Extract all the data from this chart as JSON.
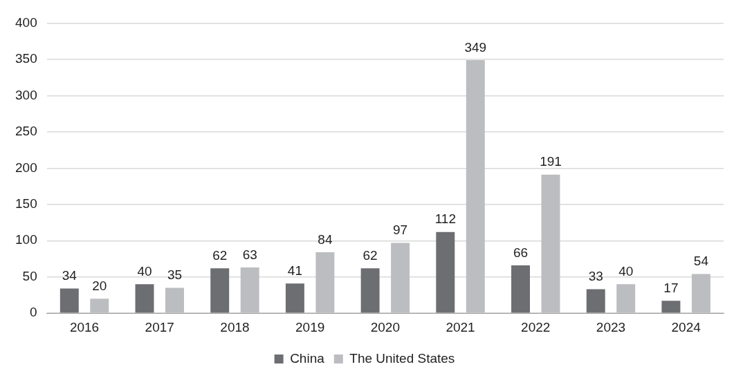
{
  "chart_data": {
    "type": "bar",
    "categories": [
      "2016",
      "2017",
      "2018",
      "2019",
      "2020",
      "2021",
      "2022",
      "2023",
      "2024"
    ],
    "series": [
      {
        "name": "China",
        "color": "#6d6e71",
        "values": [
          34,
          40,
          62,
          41,
          62,
          112,
          66,
          33,
          17
        ]
      },
      {
        "name": "The United States",
        "color": "#bcbdc0",
        "values": [
          20,
          35,
          63,
          84,
          97,
          349,
          191,
          40,
          54
        ]
      }
    ],
    "ylim": [
      0,
      400
    ],
    "yticks": [
      0,
      50,
      100,
      150,
      200,
      250,
      300,
      350,
      400
    ],
    "grid": "y",
    "legend": "bottom",
    "data_labels": true
  }
}
